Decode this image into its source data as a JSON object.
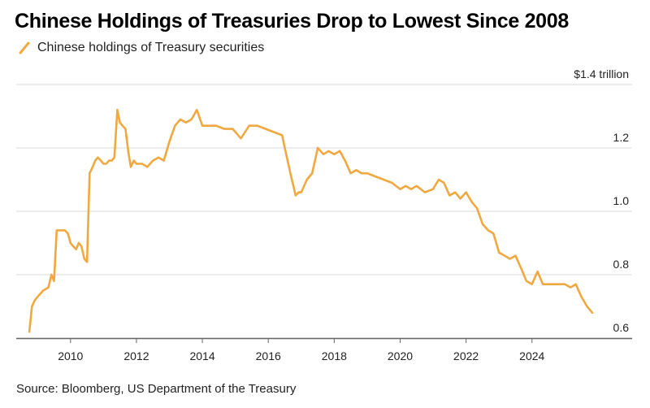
{
  "title": "Chinese Holdings of Treasuries Drop to Lowest Since 2008",
  "source": "Source: Bloomberg, US Department of the Treasury",
  "chart_data": {
    "type": "line",
    "series": [
      {
        "name": "Chinese holdings of Treasury securities",
        "color": "#f0a840",
        "x": [
          2008.75,
          2008.83,
          2008.92,
          2009.0,
          2009.17,
          2009.33,
          2009.42,
          2009.5,
          2009.58,
          2009.67,
          2009.75,
          2009.83,
          2009.92,
          2010.0,
          2010.08,
          2010.17,
          2010.25,
          2010.33,
          2010.42,
          2010.5,
          2010.58,
          2010.67,
          2010.75,
          2010.83,
          2010.92,
          2011.0,
          2011.08,
          2011.17,
          2011.25,
          2011.33,
          2011.42,
          2011.5,
          2011.58,
          2011.67,
          2011.75,
          2011.83,
          2011.92,
          2012.0,
          2012.17,
          2012.33,
          2012.5,
          2012.67,
          2012.83,
          2013.0,
          2013.17,
          2013.33,
          2013.5,
          2013.67,
          2013.83,
          2014.0,
          2014.17,
          2014.42,
          2014.67,
          2014.92,
          2015.17,
          2015.42,
          2015.67,
          2015.92,
          2016.17,
          2016.42,
          2016.5,
          2016.67,
          2016.83,
          2016.92,
          2017.0,
          2017.17,
          2017.33,
          2017.5,
          2017.67,
          2017.83,
          2018.0,
          2018.17,
          2018.33,
          2018.5,
          2018.67,
          2018.83,
          2019.0,
          2019.25,
          2019.5,
          2019.75,
          2020.0,
          2020.17,
          2020.33,
          2020.5,
          2020.75,
          2021.0,
          2021.17,
          2021.33,
          2021.5,
          2021.67,
          2021.83,
          2022.0,
          2022.17,
          2022.33,
          2022.5,
          2022.67,
          2022.83,
          2023.0,
          2023.17,
          2023.33,
          2023.5,
          2023.67,
          2023.83,
          2024.0,
          2024.17,
          2024.33,
          2024.5,
          2024.75,
          2025.0,
          2025.17,
          2025.33,
          2025.5,
          2025.67,
          2025.83
        ],
        "y": [
          0.62,
          0.7,
          0.72,
          0.73,
          0.75,
          0.76,
          0.8,
          0.78,
          0.94,
          0.94,
          0.94,
          0.94,
          0.93,
          0.9,
          0.89,
          0.88,
          0.9,
          0.89,
          0.85,
          0.84,
          1.12,
          1.14,
          1.16,
          1.17,
          1.16,
          1.15,
          1.15,
          1.16,
          1.16,
          1.17,
          1.32,
          1.28,
          1.27,
          1.26,
          1.19,
          1.14,
          1.16,
          1.15,
          1.15,
          1.14,
          1.16,
          1.17,
          1.16,
          1.22,
          1.27,
          1.29,
          1.28,
          1.29,
          1.32,
          1.27,
          1.27,
          1.27,
          1.26,
          1.26,
          1.23,
          1.27,
          1.27,
          1.26,
          1.25,
          1.24,
          1.2,
          1.12,
          1.05,
          1.06,
          1.06,
          1.1,
          1.12,
          1.2,
          1.18,
          1.19,
          1.18,
          1.19,
          1.16,
          1.12,
          1.13,
          1.12,
          1.12,
          1.11,
          1.1,
          1.09,
          1.07,
          1.08,
          1.07,
          1.08,
          1.06,
          1.07,
          1.1,
          1.09,
          1.05,
          1.06,
          1.04,
          1.06,
          1.03,
          1.01,
          0.96,
          0.94,
          0.93,
          0.87,
          0.86,
          0.85,
          0.86,
          0.82,
          0.78,
          0.77,
          0.81,
          0.77,
          0.77,
          0.77,
          0.77,
          0.76,
          0.77,
          0.73,
          0.7,
          0.68
        ]
      }
    ],
    "x_ticks": [
      "2010",
      "2012",
      "2014",
      "2016",
      "2018",
      "2020",
      "2022",
      "2024"
    ],
    "x_tick_values": [
      2010,
      2012,
      2014,
      2016,
      2018,
      2020,
      2022,
      2024
    ],
    "y_ticks": [
      "0.6",
      "0.8",
      "1.0",
      "1.2",
      "$1.4 trillion"
    ],
    "y_tick_values": [
      0.6,
      0.8,
      1.0,
      1.2,
      1.4
    ],
    "xlim": [
      2008.6,
      2026.2
    ],
    "ylim": [
      0.6,
      1.4
    ],
    "grid": true,
    "legend_placement": "top-left",
    "line_color": "#f0a840",
    "grid_color": "#d9d9d9",
    "axis_color": "#666666"
  }
}
